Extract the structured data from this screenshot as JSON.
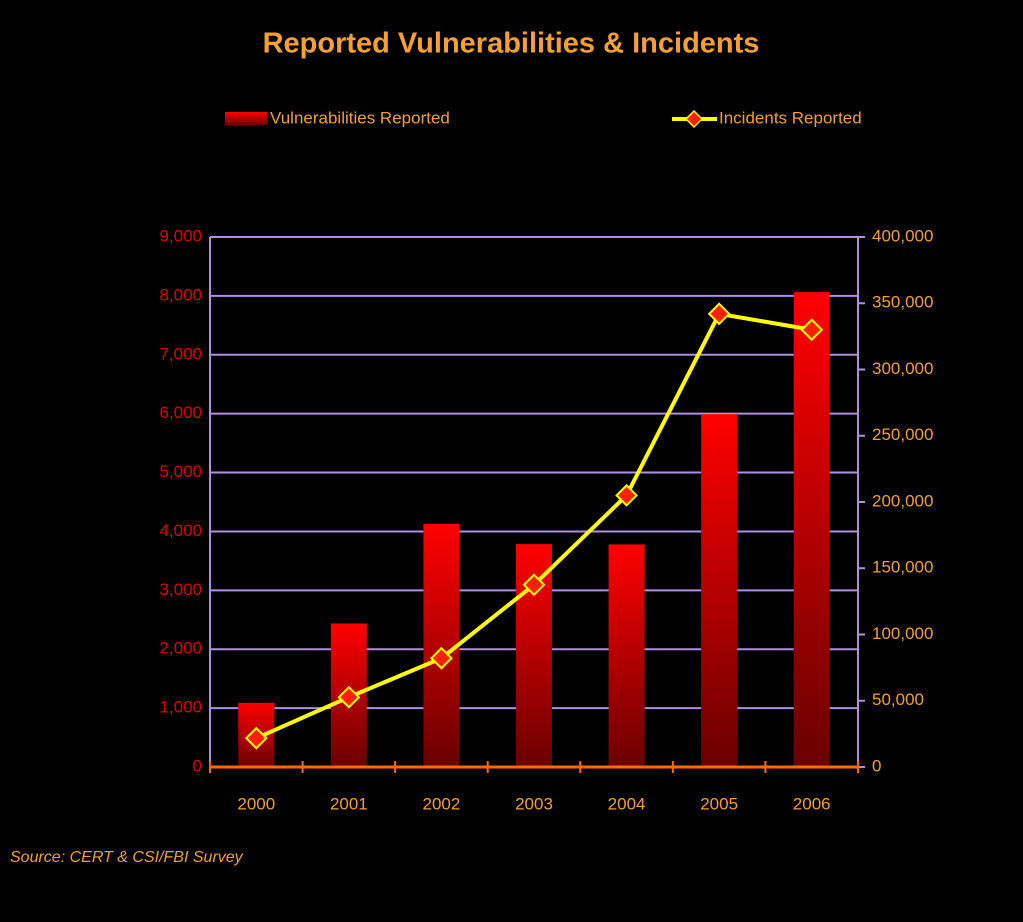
{
  "chart_data": {
    "type": "bar_line",
    "title": "Reported Vulnerabilities & Incidents",
    "source": "Source: CERT & CSI/FBI Survey",
    "categories": [
      "2000",
      "2001",
      "2002",
      "2003",
      "2004",
      "2005",
      "2006"
    ],
    "series": [
      {
        "name": "Vulnerabilities Reported",
        "type": "bar",
        "color": "#ff0000",
        "values": [
          1090,
          2437,
          4129,
          3784,
          3780,
          5990,
          8064
        ]
      },
      {
        "name": "Incidents Reported",
        "type": "line",
        "axis": "y2",
        "color": "#ffff00",
        "marker_color": "#ff2000",
        "values": [
          21756,
          52658,
          82094,
          137529,
          205000,
          342000,
          330000
        ]
      }
    ],
    "ylim": [
      0,
      9000
    ],
    "yticks": [
      0,
      {
        "value": 1000,
        "label": "1,000"
      },
      {
        "value": 2000,
        "label": "2,000"
      },
      {
        "value": 3000,
        "label": "3,000"
      },
      {
        "value": 4000,
        "label": "4,000"
      },
      {
        "value": 5000,
        "label": "5,000"
      },
      {
        "value": 6000,
        "label": "6,000"
      },
      {
        "value": 7000,
        "label": "7,000"
      },
      {
        "value": 8000,
        "label": "8,000"
      },
      {
        "value": 9000,
        "label": "9,000"
      }
    ],
    "y2lim": [
      0,
      400000
    ],
    "y2ticks": [
      0,
      {
        "value": 50000,
        "label": "50,000"
      },
      {
        "value": 100000,
        "label": "100,000"
      },
      {
        "value": 150000,
        "label": "150,000"
      },
      {
        "value": 200000,
        "label": "200,000"
      },
      {
        "value": 250000,
        "label": "250,000"
      },
      {
        "value": 300000,
        "label": "300,000"
      },
      {
        "value": 350000,
        "label": "350,000"
      },
      {
        "value": 400000,
        "label": "400,000"
      }
    ],
    "grid": true
  }
}
